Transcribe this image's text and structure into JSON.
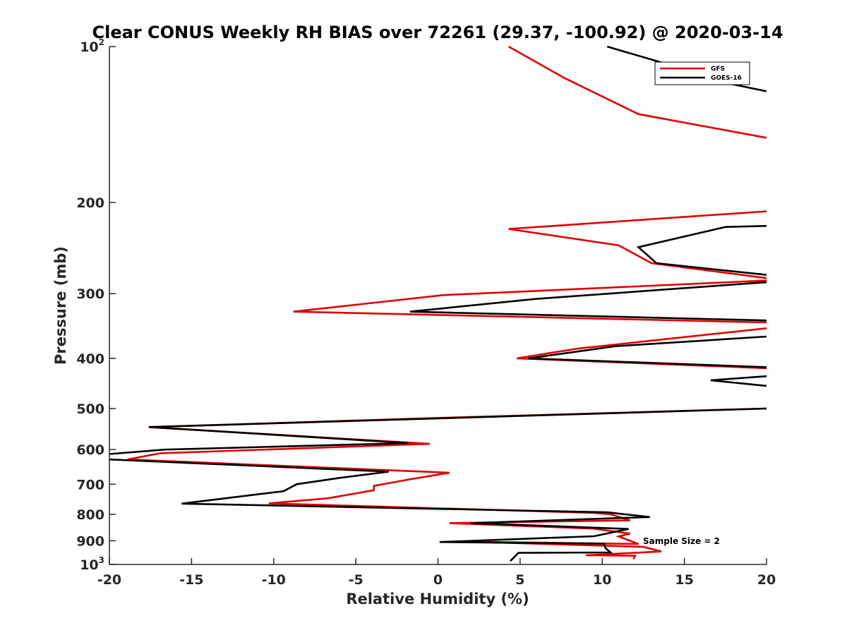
{
  "chart_data": {
    "type": "line",
    "title": "Clear CONUS Weekly RH BIAS over 72261 (29.37, -100.92) @ 2020-03-14",
    "xlabel": "Relative Humidity (%)",
    "ylabel": "Pressure (mb)",
    "xlim": [
      -20,
      20
    ],
    "ylim": [
      100,
      1000
    ],
    "y_scale": "log",
    "y_reversed": true,
    "grid": false,
    "legend_position": "top-right",
    "x_ticks": [
      "-20",
      "-15",
      "-10",
      "-5",
      "0",
      "5",
      "10",
      "15",
      "20"
    ],
    "y_ticks": [
      {
        "value": 100,
        "base": "10",
        "exp": "2"
      },
      {
        "value": 200,
        "label": "200"
      },
      {
        "value": 300,
        "label": "300"
      },
      {
        "value": 400,
        "label": "400"
      },
      {
        "value": 500,
        "label": "500"
      },
      {
        "value": 600,
        "label": "600"
      },
      {
        "value": 700,
        "label": "700"
      },
      {
        "value": 800,
        "label": "800"
      },
      {
        "value": 900,
        "label": "900"
      },
      {
        "value": 1000,
        "base": "10",
        "exp": "3"
      }
    ],
    "annotation": "Sample Size = 2",
    "series": [
      {
        "name": "GFS",
        "color": "#e00000",
        "points": [
          [
            4.3,
            100
          ],
          [
            7.7,
            115
          ],
          [
            12.2,
            135
          ],
          [
            20,
            150
          ],
          null,
          [
            20,
            208
          ],
          [
            4.3,
            225
          ],
          [
            11.0,
            242
          ],
          [
            13.0,
            262
          ],
          [
            20,
            280
          ],
          null,
          [
            20,
            283
          ],
          [
            0.3,
            302
          ],
          [
            -8.8,
            325
          ],
          [
            20,
            341
          ],
          null,
          [
            20,
            350
          ],
          [
            8.5,
            383
          ],
          [
            4.8,
            400
          ],
          [
            20,
            418
          ],
          null,
          [
            20,
            500
          ],
          [
            -1.5,
            523
          ],
          [
            -17.6,
            543
          ],
          [
            -0.5,
            585
          ],
          [
            -16.9,
            610
          ],
          [
            -18.9,
            627
          ],
          [
            0.7,
            665
          ],
          [
            -1.5,
            683
          ],
          [
            -3.9,
            705
          ],
          [
            -3.9,
            719
          ],
          [
            -6.7,
            745
          ],
          [
            -10.3,
            762
          ],
          [
            9.5,
            795
          ],
          [
            10.5,
            800
          ],
          [
            11.7,
            822
          ],
          [
            0.7,
            832
          ],
          [
            9.5,
            853
          ],
          [
            11.7,
            872
          ],
          [
            11.0,
            883
          ],
          [
            12.2,
            913
          ],
          [
            1.4,
            903
          ],
          [
            12.5,
            925
          ],
          [
            13.6,
            944
          ],
          [
            9.0,
            960
          ],
          [
            12.0,
            962
          ],
          [
            11.9,
            976
          ]
        ]
      },
      {
        "name": "GOES-16",
        "color": "#000000",
        "points": [
          [
            10.3,
            100
          ],
          [
            15.6,
            112
          ],
          [
            16.1,
            115
          ],
          [
            20,
            122
          ],
          null,
          [
            20,
            222
          ],
          [
            17.5,
            223
          ],
          [
            12.2,
            244
          ],
          [
            13.3,
            262
          ],
          [
            20,
            276
          ],
          null,
          [
            20,
            285
          ],
          [
            6.0,
            307
          ],
          [
            -1.7,
            325
          ],
          [
            20,
            338
          ],
          null,
          [
            20,
            363
          ],
          [
            10.8,
            379
          ],
          [
            5.5,
            400
          ],
          [
            20,
            416
          ],
          null,
          [
            20,
            433
          ],
          [
            16.6,
            441
          ],
          [
            20,
            452
          ],
          null,
          [
            20,
            500
          ],
          [
            -17.6,
            543
          ],
          [
            -1.8,
            583
          ],
          [
            -16.6,
            600
          ],
          [
            -20,
            612
          ],
          null,
          [
            -20,
            627
          ],
          [
            -3.0,
            662
          ],
          [
            -5.9,
            680
          ],
          [
            -8.6,
            700
          ],
          [
            -9.4,
            722
          ],
          [
            -15.6,
            763
          ],
          [
            10.3,
            793
          ],
          [
            12.9,
            810
          ],
          [
            2.0,
            832
          ],
          [
            11.6,
            854
          ],
          [
            9.5,
            882
          ],
          [
            0.1,
            905
          ],
          [
            10.1,
            912
          ],
          [
            10.2,
            930
          ],
          [
            10.5,
            948
          ],
          [
            4.9,
            950
          ],
          [
            4.4,
            985
          ]
        ]
      }
    ]
  }
}
